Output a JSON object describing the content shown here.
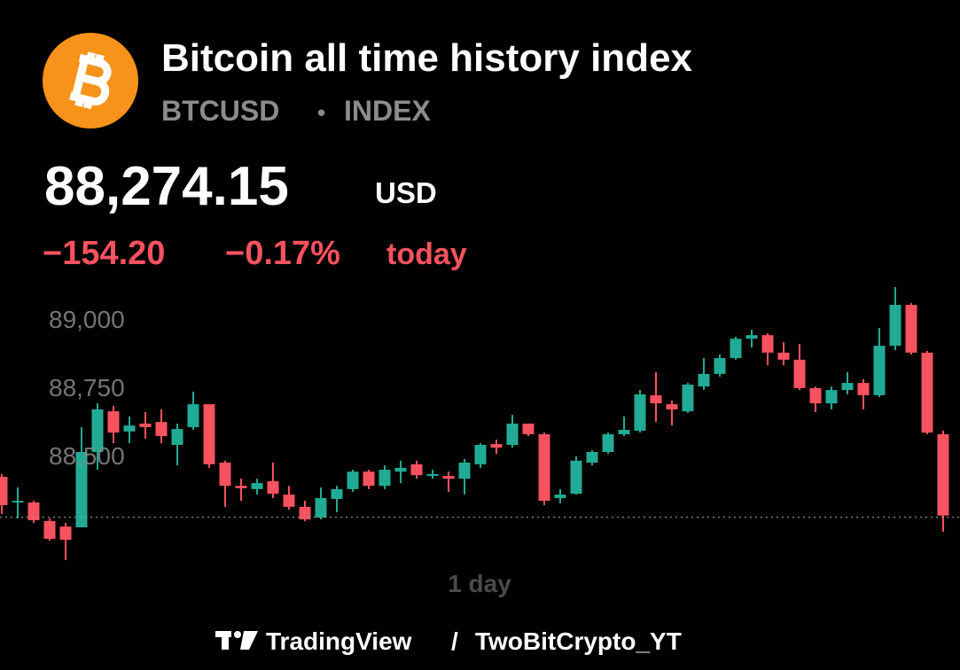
{
  "header": {
    "title": "Bitcoin all time history index",
    "symbol": "BTCUSD",
    "separator": "•",
    "exchange": "INDEX",
    "price": "88,274.15",
    "currency": "USD",
    "change": "−154.20",
    "change_percent": "−0.17%",
    "change_period": "today"
  },
  "chart_data": {
    "type": "candlestick",
    "interval": "1 day",
    "up_color": "#22ab94",
    "down_color": "#f7525f",
    "last_price": 88274.15,
    "open": [
      88422,
      88328,
      88328,
      88260,
      88240,
      88237,
      88513,
      88662,
      88588,
      88617,
      88623,
      88539,
      88604,
      88688,
      88474,
      88389,
      88377,
      88406,
      88357,
      88312,
      88273,
      88341,
      88377,
      88441,
      88389,
      88441,
      88468,
      88425,
      88425,
      88415,
      88468,
      88542,
      88539,
      88617,
      88578,
      88344,
      88360,
      88474,
      88513,
      88578,
      88591,
      88721,
      88688,
      88662,
      88753,
      88799,
      88857,
      88928,
      88941,
      88877,
      88851,
      88747,
      88691,
      88740,
      88766,
      88721,
      88902,
      89052,
      88877,
      88578
    ],
    "high": [
      88432,
      88383,
      88334,
      88270,
      88253,
      88604,
      88691,
      88682,
      88643,
      88659,
      88669,
      88617,
      88734,
      88688,
      88481,
      88415,
      88415,
      88474,
      88389,
      88334,
      88383,
      88389,
      88448,
      88448,
      88464,
      88481,
      88481,
      88448,
      88441,
      88487,
      88545,
      88558,
      88649,
      88617,
      88584,
      88377,
      88497,
      88519,
      88584,
      88643,
      88740,
      88805,
      88701,
      88766,
      88857,
      88870,
      88935,
      88961,
      88948,
      88915,
      88909,
      88753,
      88753,
      88805,
      88779,
      88967,
      89117,
      89058,
      88883,
      88591
    ],
    "low": [
      88286,
      88270,
      88253,
      88188,
      88117,
      88237,
      88448,
      88545,
      88545,
      88562,
      88545,
      88464,
      88594,
      88455,
      88312,
      88334,
      88357,
      88344,
      88302,
      88260,
      88266,
      88292,
      88367,
      88377,
      88377,
      88399,
      88415,
      88415,
      88367,
      88357,
      88455,
      88506,
      88529,
      88571,
      88318,
      88325,
      88357,
      88464,
      88506,
      88571,
      88584,
      88623,
      88610,
      88656,
      88740,
      88789,
      88851,
      88896,
      88831,
      88831,
      88740,
      88659,
      88669,
      88724,
      88669,
      88714,
      88886,
      88870,
      88578,
      88221
    ],
    "close": [
      88318,
      88334,
      88263,
      88195,
      88191,
      88513,
      88669,
      88584,
      88610,
      88604,
      88571,
      88597,
      88688,
      88468,
      88389,
      88380,
      88399,
      88360,
      88312,
      88266,
      88344,
      88377,
      88441,
      88389,
      88448,
      88455,
      88428,
      88432,
      88415,
      88474,
      88539,
      88529,
      88617,
      88578,
      88334,
      88357,
      88481,
      88513,
      88578,
      88594,
      88724,
      88691,
      88669,
      88760,
      88799,
      88857,
      88928,
      88941,
      88877,
      88851,
      88747,
      88691,
      88740,
      88766,
      88721,
      88902,
      89052,
      88877,
      88584,
      88280
    ],
    "ylim": [
      88100,
      89200
    ],
    "yticks": [
      {
        "value": 88500,
        "label": "88,500"
      },
      {
        "value": 88750,
        "label": "88,750"
      },
      {
        "value": 89000,
        "label": "89,000"
      }
    ]
  },
  "footer": {
    "brand": "TradingView",
    "divider": "/",
    "author": "TwoBitCrypto_YT"
  }
}
